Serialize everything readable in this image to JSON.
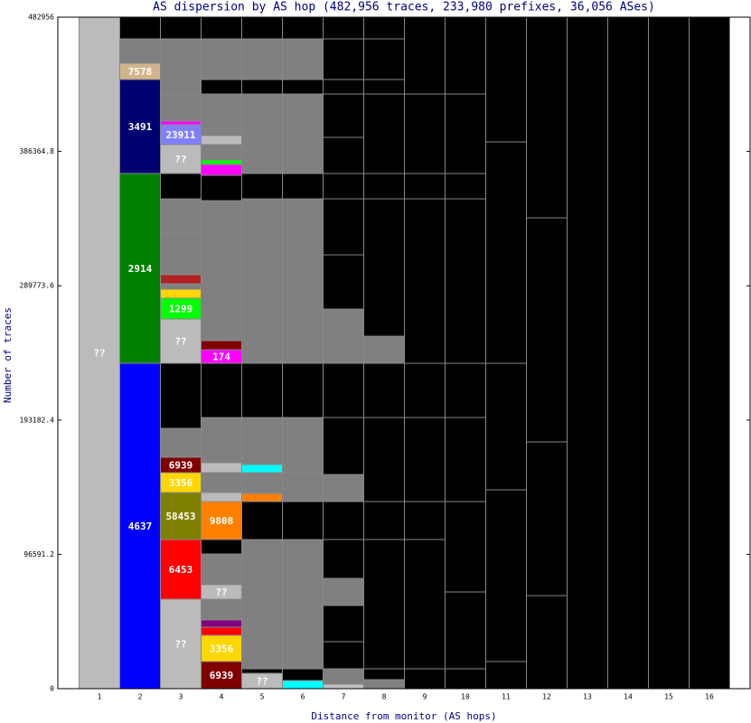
{
  "chart_data": {
    "type": "stacked-bar",
    "title": "AS dispersion by AS hop (482,956 traces, 233,980 prefixes, 36,056 ASes)",
    "x_label": "Distance from monitor (AS hops)",
    "y_label": "Number of traces",
    "categories": [
      "1",
      "2",
      "3",
      "4",
      "5",
      "6",
      "7",
      "8",
      "9",
      "10",
      "11",
      "12",
      "13",
      "14",
      "15",
      "16"
    ],
    "ylim": [
      0,
      482956
    ],
    "yticks": [
      0,
      96591.2,
      193182.4,
      289773.6,
      386364.8,
      482956
    ],
    "stacks": [
      {
        "segments": [
          {
            "value": 482956,
            "color": "#bbbbbb",
            "label": "??"
          }
        ]
      },
      {
        "segments": [
          {
            "value": 234000,
            "color": "#0000ff",
            "label": "4637"
          },
          {
            "value": 136500,
            "color": "#008000",
            "label": "2914"
          },
          {
            "value": 67600,
            "color": "#000070",
            "label": "3491"
          },
          {
            "value": 11700,
            "color": "#d2b48c",
            "label": "7578"
          },
          {
            "value": 17550,
            "color": "#808080"
          },
          {
            "value": 15606,
            "color": "#000000"
          }
        ]
      },
      {
        "segments": [
          {
            "value": 64350,
            "color": "#bbbbbb",
            "label": "??"
          },
          {
            "value": 42900,
            "color": "#ff0000",
            "label": "6453"
          },
          {
            "value": 33800,
            "color": "#808000",
            "label": "58453"
          },
          {
            "value": 14300,
            "color": "#ffd700",
            "label": "3356"
          },
          {
            "value": 11050,
            "color": "#800000",
            "label": "6939"
          },
          {
            "value": 20800,
            "color": "#808080"
          },
          {
            "value": 46800,
            "color": "#000000"
          },
          {
            "value": 31850,
            "color": "#bbbbbb",
            "label": "??"
          },
          {
            "value": 14950,
            "color": "#00ff00",
            "label": "1299"
          },
          {
            "value": 6500,
            "color": "#ffd700"
          },
          {
            "value": 3900,
            "color": "#808080"
          },
          {
            "value": 6500,
            "color": "#b22222"
          },
          {
            "value": 29900,
            "color": "#808080"
          },
          {
            "value": 24700,
            "color": "#808080"
          },
          {
            "value": 18200,
            "color": "#000000"
          },
          {
            "value": 20800,
            "color": "#bbbbbb",
            "label": "??"
          },
          {
            "value": 14300,
            "color": "#8080ff",
            "label": "23911"
          },
          {
            "value": 2600,
            "color": "#ff00ff"
          },
          {
            "value": 19500,
            "color": "#808080"
          },
          {
            "value": 39650,
            "color": "#808080"
          },
          {
            "value": 15600,
            "color": "#000000"
          }
        ]
      },
      {
        "segments": [
          {
            "value": 19500,
            "color": "#800000",
            "label": "6939"
          },
          {
            "value": 18850,
            "color": "#ffd700",
            "label": "3356"
          },
          {
            "value": 5850,
            "color": "#ff0000"
          },
          {
            "value": 5200,
            "color": "#800080"
          },
          {
            "value": 14950,
            "color": "#808080"
          },
          {
            "value": 10400,
            "color": "#bbbbbb",
            "label": "??"
          },
          {
            "value": 22100,
            "color": "#808080"
          },
          {
            "value": 10400,
            "color": "#000000"
          },
          {
            "value": 27300,
            "color": "#ff8000",
            "label": "9808"
          },
          {
            "value": 6500,
            "color": "#bbbbbb"
          },
          {
            "value": 14300,
            "color": "#808080"
          },
          {
            "value": 7150,
            "color": "#bbbbbb"
          },
          {
            "value": 32500,
            "color": "#808080"
          },
          {
            "value": 39000,
            "color": "#000000"
          },
          {
            "value": 9750,
            "color": "#ff00ff",
            "label": "174"
          },
          {
            "value": 6500,
            "color": "#800000"
          },
          {
            "value": 100750,
            "color": "#808080"
          },
          {
            "value": 18200,
            "color": "#000000"
          },
          {
            "value": 7800,
            "color": "#ff00ff"
          },
          {
            "value": 3250,
            "color": "#00ff00"
          },
          {
            "value": 11050,
            "color": "#808080"
          },
          {
            "value": 6500,
            "color": "#bbbbbb"
          },
          {
            "value": 29900,
            "color": "#808080"
          },
          {
            "value": 10400,
            "color": "#000000"
          },
          {
            "value": 29250,
            "color": "#808080"
          },
          {
            "value": 15606,
            "color": "#000000"
          }
        ]
      },
      {
        "segments": [
          {
            "value": 11050,
            "color": "#bbbbbb",
            "label": "??"
          },
          {
            "value": 3250,
            "color": "#000000"
          },
          {
            "value": 92950,
            "color": "#808080"
          },
          {
            "value": 27300,
            "color": "#000000"
          },
          {
            "value": 5850,
            "color": "#ff8000"
          },
          {
            "value": 14950,
            "color": "#808080"
          },
          {
            "value": 5850,
            "color": "#00ffff"
          },
          {
            "value": 33800,
            "color": "#808080"
          },
          {
            "value": 39000,
            "color": "#000000"
          },
          {
            "value": 118300,
            "color": "#808080"
          },
          {
            "value": 18200,
            "color": "#000000"
          },
          {
            "value": 57200,
            "color": "#808080"
          },
          {
            "value": 10400,
            "color": "#000000"
          },
          {
            "value": 29250,
            "color": "#808080"
          },
          {
            "value": 15606,
            "color": "#000000"
          }
        ]
      },
      {
        "segments": [
          {
            "value": 5850,
            "color": "#00ffff"
          },
          {
            "value": 8450,
            "color": "#000000"
          },
          {
            "value": 92950,
            "color": "#808080"
          },
          {
            "value": 27300,
            "color": "#000000"
          },
          {
            "value": 20800,
            "color": "#808080"
          },
          {
            "value": 39650,
            "color": "#808080"
          },
          {
            "value": 39000,
            "color": "#000000"
          },
          {
            "value": 118300,
            "color": "#808080"
          },
          {
            "value": 18200,
            "color": "#000000"
          },
          {
            "value": 57200,
            "color": "#808080"
          },
          {
            "value": 10400,
            "color": "#000000"
          },
          {
            "value": 29250,
            "color": "#808080"
          },
          {
            "value": 15606,
            "color": "#000000"
          }
        ]
      },
      {
        "segments": [
          {
            "value": 3250,
            "color": "#c0c0c0"
          },
          {
            "value": 11050,
            "color": "#808080"
          },
          {
            "value": 19500,
            "color": "#000000"
          },
          {
            "value": 26000,
            "color": "#000000"
          },
          {
            "value": 19500,
            "color": "#808080"
          },
          {
            "value": 27950,
            "color": "#000000"
          },
          {
            "value": 27300,
            "color": "#000000"
          },
          {
            "value": 19500,
            "color": "#808080"
          },
          {
            "value": 40950,
            "color": "#000000"
          },
          {
            "value": 39000,
            "color": "#000000"
          },
          {
            "value": 39000,
            "color": "#808080"
          },
          {
            "value": 39000,
            "color": "#000000"
          },
          {
            "value": 40300,
            "color": "#000000"
          },
          {
            "value": 18200,
            "color": "#000000"
          },
          {
            "value": 26000,
            "color": "#000000"
          },
          {
            "value": 31200,
            "color": "#000000"
          },
          {
            "value": 10400,
            "color": "#000000"
          },
          {
            "value": 29250,
            "color": "#000000"
          },
          {
            "value": 15606,
            "color": "#000000"
          }
        ]
      },
      {
        "segments": [
          {
            "value": 6500,
            "color": "#808080"
          },
          {
            "value": 7800,
            "color": "#000000"
          },
          {
            "value": 92950,
            "color": "#000000"
          },
          {
            "value": 27300,
            "color": "#000000"
          },
          {
            "value": 60450,
            "color": "#000000"
          },
          {
            "value": 39000,
            "color": "#000000"
          },
          {
            "value": 19500,
            "color": "#808080"
          },
          {
            "value": 98800,
            "color": "#000000"
          },
          {
            "value": 18200,
            "color": "#000000"
          },
          {
            "value": 57200,
            "color": "#000000"
          },
          {
            "value": 10400,
            "color": "#000000"
          },
          {
            "value": 29250,
            "color": "#000000"
          },
          {
            "value": 15606,
            "color": "#000000"
          }
        ]
      },
      {
        "segments": [
          {
            "value": 14300,
            "color": "#000000"
          },
          {
            "value": 92950,
            "color": "#000000"
          },
          {
            "value": 27300,
            "color": "#000000"
          },
          {
            "value": 60450,
            "color": "#000000"
          },
          {
            "value": 39000,
            "color": "#000000"
          },
          {
            "value": 118300,
            "color": "#000000"
          },
          {
            "value": 18200,
            "color": "#000000"
          },
          {
            "value": 57200,
            "color": "#000000"
          },
          {
            "value": 55256,
            "color": "#000000"
          }
        ]
      },
      {
        "segments": [
          {
            "value": 14300,
            "color": "#000000"
          },
          {
            "value": 55250,
            "color": "#000000"
          },
          {
            "value": 65000,
            "color": "#000000"
          },
          {
            "value": 60450,
            "color": "#000000"
          },
          {
            "value": 39000,
            "color": "#000000"
          },
          {
            "value": 118300,
            "color": "#000000"
          },
          {
            "value": 18200,
            "color": "#000000"
          },
          {
            "value": 57200,
            "color": "#000000"
          },
          {
            "value": 55256,
            "color": "#000000"
          }
        ]
      },
      {
        "segments": [
          {
            "value": 19500,
            "color": "#000000"
          },
          {
            "value": 123500,
            "color": "#000000"
          },
          {
            "value": 91000,
            "color": "#000000"
          },
          {
            "value": 159250,
            "color": "#000000"
          },
          {
            "value": 89706,
            "color": "#000000"
          }
        ]
      },
      {
        "segments": [
          {
            "value": 66950,
            "color": "#000000"
          },
          {
            "value": 110500,
            "color": "#000000"
          },
          {
            "value": 161200,
            "color": "#000000"
          },
          {
            "value": 144306,
            "color": "#000000"
          }
        ]
      },
      {
        "segments": [
          {
            "value": 482956,
            "color": "#000000"
          }
        ]
      },
      {
        "segments": [
          {
            "value": 482956,
            "color": "#000000"
          }
        ]
      },
      {
        "segments": [
          {
            "value": 482956,
            "color": "#000000"
          }
        ]
      },
      {
        "segments": [
          {
            "value": 482956,
            "color": "#000000"
          }
        ]
      }
    ]
  }
}
